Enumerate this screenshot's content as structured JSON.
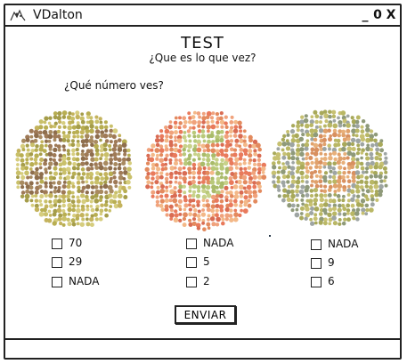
{
  "window": {
    "title": "VDalton",
    "minimize": "_",
    "maximize": "0",
    "close": "X"
  },
  "header": {
    "title": "TEST",
    "subtitle": "¿Que es lo que vez?"
  },
  "question": "¿Qué número ves?",
  "plates": [
    {
      "id": "plate-1",
      "number": "29",
      "palette": [
        "#c9c06a",
        "#b8ae52",
        "#d6cd7e",
        "#a59d4a",
        "#c4b35d"
      ],
      "figure": [
        "#9f7a57",
        "#a88a60",
        "#8e6e4d"
      ]
    },
    {
      "id": "plate-2",
      "number": "5",
      "palette": [
        "#e97a5c",
        "#f0a27c",
        "#e38a5e",
        "#f3b888",
        "#d96c53"
      ],
      "figure": [
        "#b9c97a",
        "#c8d28a",
        "#a9bb6a"
      ]
    },
    {
      "id": "plate-3",
      "number": "6",
      "palette": [
        "#b9b765",
        "#a8a95a",
        "#c7c172",
        "#9ea5a3",
        "#8f9a7a"
      ],
      "figure": [
        "#e0a16b",
        "#d89060",
        "#e8b07a"
      ]
    }
  ],
  "options": [
    [
      "70",
      "29",
      "NADA"
    ],
    [
      "NADA",
      "5",
      "2"
    ],
    [
      "NADA",
      "9",
      "6"
    ]
  ],
  "submit_label": "ENVIAR"
}
